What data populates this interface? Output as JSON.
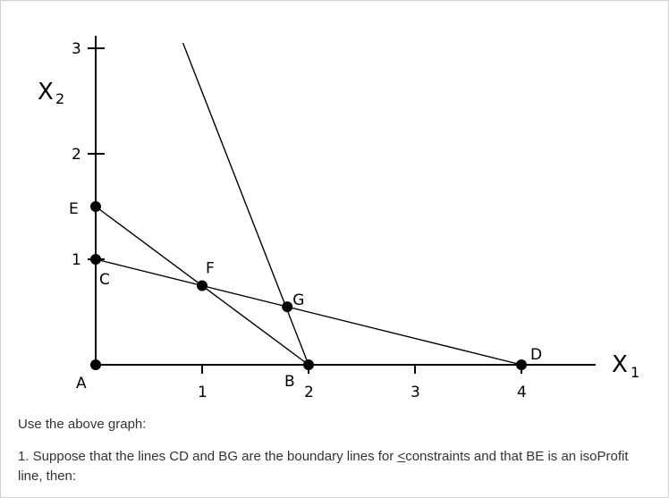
{
  "graph": {
    "x_axis_name": "X",
    "x_axis_sub": "1",
    "y_axis_name": "X",
    "y_axis_sub": "2",
    "x_ticks": [
      {
        "value": 1,
        "label": "1"
      },
      {
        "value": 2,
        "label": "2"
      },
      {
        "value": 3,
        "label": "3"
      },
      {
        "value": 4,
        "label": "4"
      }
    ],
    "y_ticks": [
      {
        "value": 1,
        "label": "1"
      },
      {
        "value": 2,
        "label": "2"
      },
      {
        "value": 3,
        "label": "3"
      }
    ],
    "points": [
      {
        "id": "A",
        "x": 0,
        "y": 0
      },
      {
        "id": "B",
        "x": 2,
        "y": 0
      },
      {
        "id": "C",
        "x": 0,
        "y": 1
      },
      {
        "id": "D",
        "x": 4,
        "y": 0
      },
      {
        "id": "E",
        "x": 0,
        "y": 1.5
      },
      {
        "id": "F",
        "x": 1,
        "y": 0.75
      },
      {
        "id": "G",
        "x": 1.8,
        "y": 0.55
      }
    ],
    "lines": [
      {
        "id": "CD",
        "from": "C",
        "to": "D"
      },
      {
        "id": "EB",
        "from": "E",
        "to": "B"
      },
      {
        "id": "BG",
        "from": "B",
        "to": [
          0.82,
          3.05
        ]
      }
    ]
  },
  "text": {
    "instruction": "Use the above graph:",
    "question_prefix": "1. Suppose that the lines CD and BG are the boundary lines for ",
    "question_symbol": "<",
    "question_suffix": "constraints and that BE is an isoProfit line, then:"
  }
}
